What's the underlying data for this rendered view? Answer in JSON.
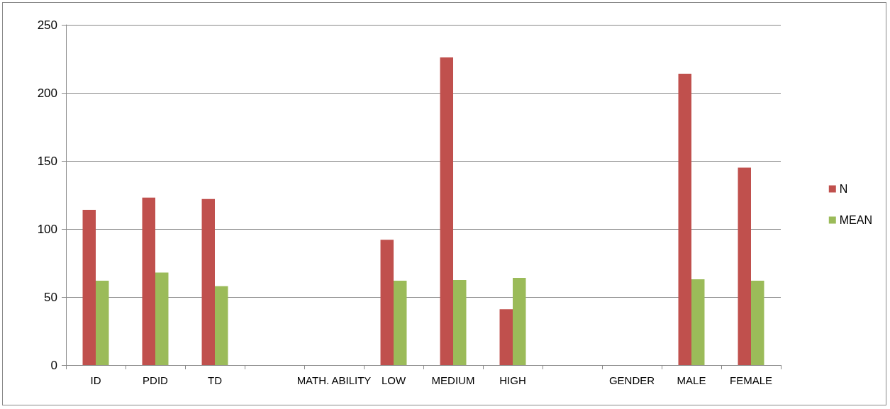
{
  "chart_data": {
    "type": "bar",
    "categories": [
      "ID",
      "PDID",
      "TD",
      null,
      "MATH. ABILITY",
      "LOW",
      "MEDIUM",
      "HIGH",
      null,
      "GENDER",
      "MALE",
      "FEMALE"
    ],
    "series": [
      {
        "name": "N",
        "color": "#c0504d",
        "values": [
          114,
          123,
          122,
          null,
          null,
          92,
          226,
          41,
          null,
          null,
          214,
          145
        ]
      },
      {
        "name": "MEAN",
        "color": "#9bbb59",
        "values": [
          62,
          68,
          58,
          null,
          null,
          62,
          62.5,
          64,
          null,
          null,
          63,
          62
        ]
      }
    ],
    "ylim": [
      0,
      250
    ],
    "yticks": [
      0,
      50,
      100,
      150,
      200,
      250
    ],
    "grid": "y",
    "legend": "right"
  }
}
